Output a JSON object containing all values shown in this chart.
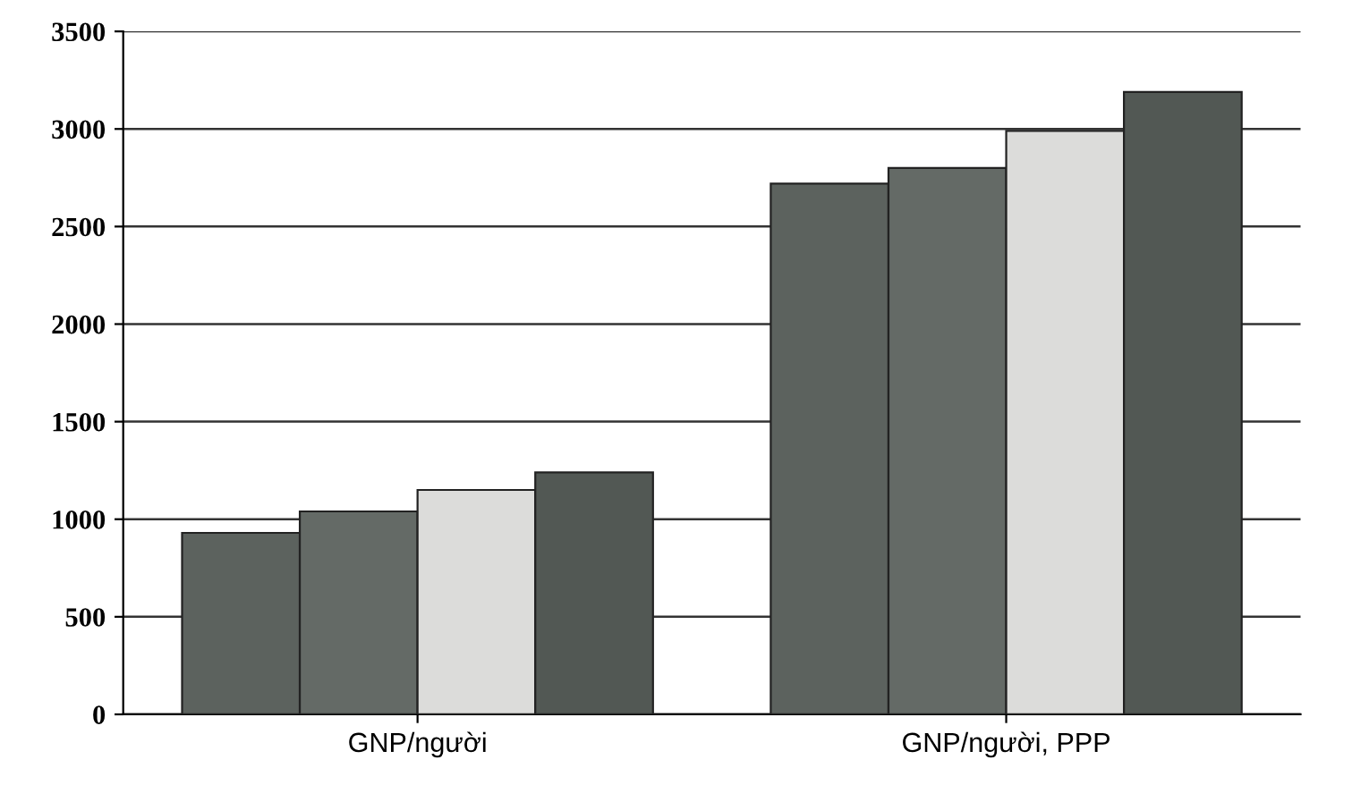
{
  "chart_data": {
    "type": "bar",
    "categories": [
      "GNP/người",
      "GNP/người, PPP"
    ],
    "series": [
      {
        "color": "#5c625e",
        "values": [
          930,
          2720
        ]
      },
      {
        "color": "#646a66",
        "values": [
          1040,
          2800
        ]
      },
      {
        "color": "#dcdcda",
        "values": [
          1150,
          2990
        ]
      },
      {
        "color": "#525854",
        "values": [
          1240,
          3190
        ]
      }
    ],
    "ylim": [
      0,
      3500
    ],
    "yticks": [
      0,
      500,
      1000,
      1500,
      2000,
      2500,
      3000,
      3500
    ],
    "grid": "y"
  }
}
